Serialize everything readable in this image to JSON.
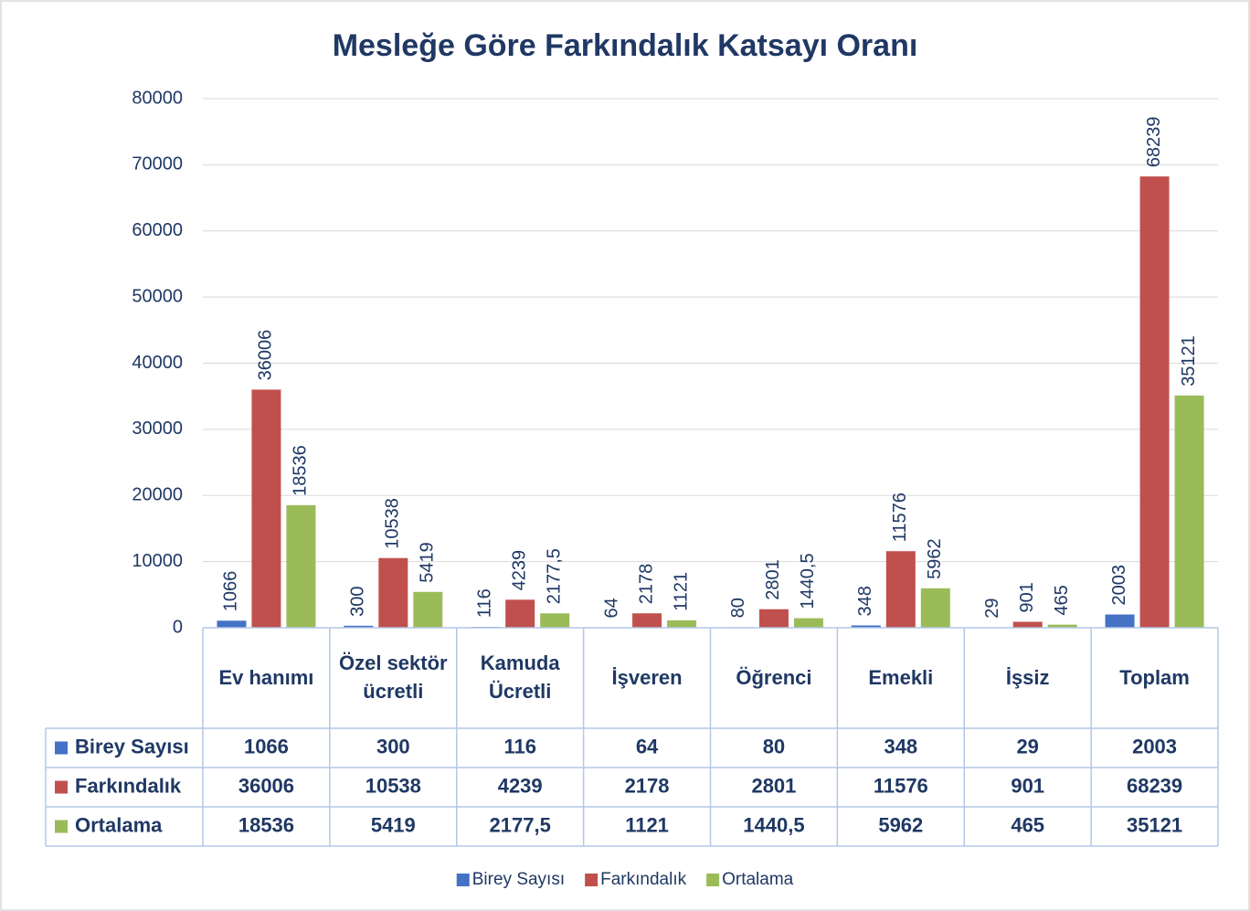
{
  "chart_data": {
    "type": "bar",
    "title": "Mesleğe Göre Farkındalık Katsayı Oranı",
    "categories": [
      "Ev hanımı",
      "Özel sektör ücretli",
      "Kamuda Ücretli",
      "İşveren",
      "Öğrenci",
      "Emekli",
      "İşsiz",
      "Toplam"
    ],
    "series": [
      {
        "name": "Birey Sayısı",
        "color": "#4472c4",
        "values": [
          1066,
          300,
          116,
          64,
          80,
          348,
          29,
          2003
        ]
      },
      {
        "name": "Farkındalık",
        "color": "#c0504d",
        "values": [
          36006,
          10538,
          4239,
          2178,
          2801,
          11576,
          901,
          68239
        ]
      },
      {
        "name": "Ortalama",
        "color": "#9bbb59",
        "values": [
          18536,
          5419,
          2177.5,
          1121,
          1440.5,
          5962,
          465,
          35121
        ],
        "value_labels": [
          "18536",
          "5419",
          "2177,5",
          "1121",
          "1440,5",
          "5962",
          "465",
          "35121"
        ]
      }
    ],
    "ylim": [
      0,
      80000
    ],
    "yticks": [
      0,
      10000,
      20000,
      30000,
      40000,
      50000,
      60000,
      70000,
      80000
    ],
    "grid": true,
    "legend": "bottom",
    "data_table": true
  }
}
